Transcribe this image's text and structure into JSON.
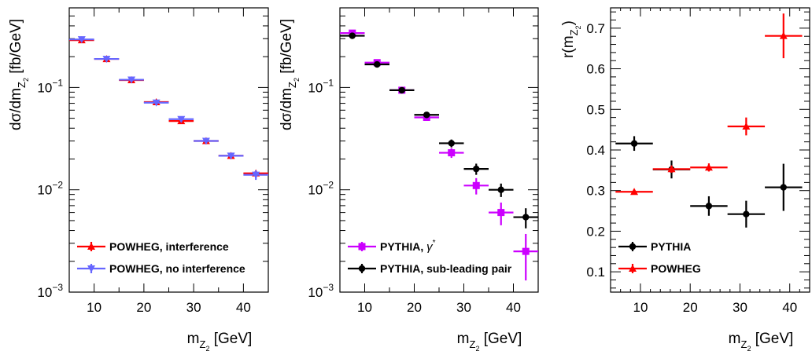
{
  "chart_data": [
    {
      "type": "scatter",
      "panel": "left",
      "ylabel": "dσ/dm_Z2 [fb/GeV]",
      "xlabel": "m_Z2 [GeV]",
      "yscale": "log",
      "xlim": [
        5,
        45
      ],
      "ylim": [
        0.001,
        0.6
      ],
      "xticks": [
        10,
        20,
        30,
        40
      ],
      "yticks": [
        {
          "value": 0.1,
          "label": "10",
          "exp": "−1"
        },
        {
          "value": 0.01,
          "label": "10",
          "exp": "−2"
        },
        {
          "value": 0.001,
          "label": "10",
          "exp": "−3"
        }
      ],
      "legend_position": "bottom-left",
      "series": [
        {
          "name": "POWHEG, interference",
          "color": "#ff0000",
          "marker": "triangle-up",
          "x": [
            7.5,
            12.5,
            17.5,
            22.5,
            27.5,
            32.5,
            37.5,
            42.5
          ],
          "xerr": 2.5,
          "y": [
            0.29,
            0.19,
            0.118,
            0.072,
            0.047,
            0.03,
            0.0215,
            0.0145
          ],
          "yerr": [
            0.008,
            0.005,
            0.003,
            0.002,
            0.0018,
            0.0013,
            0.001,
            0.0008
          ]
        },
        {
          "name": "POWHEG, no interference",
          "color": "#6666ff",
          "marker": "triangle-down",
          "x": [
            7.5,
            12.5,
            17.5,
            22.5,
            27.5,
            32.5,
            37.5,
            42.5
          ],
          "xerr": 2.5,
          "y": [
            0.295,
            0.19,
            0.119,
            0.071,
            0.049,
            0.03,
            0.0215,
            0.014
          ],
          "yerr": [
            0.008,
            0.005,
            0.003,
            0.003,
            0.003,
            0.0015,
            0.001,
            0.0015
          ]
        }
      ]
    },
    {
      "type": "scatter",
      "panel": "middle",
      "ylabel": "dσ/dm_Z2 [fb/GeV]",
      "xlabel": "m_Z2 [GeV]",
      "yscale": "log",
      "xlim": [
        5,
        45
      ],
      "ylim": [
        0.001,
        0.6
      ],
      "xticks": [
        10,
        20,
        30,
        40
      ],
      "yticks": [
        {
          "value": 0.1,
          "label": "10",
          "exp": "−1"
        },
        {
          "value": 0.01,
          "label": "10",
          "exp": "−2"
        },
        {
          "value": 0.001,
          "label": "10",
          "exp": "−3"
        }
      ],
      "legend_position": "bottom-left",
      "series": [
        {
          "name": "PYTHIA, γ*",
          "color": "#cc00ff",
          "marker": "square",
          "x": [
            7.5,
            12.5,
            17.5,
            22.5,
            27.5,
            32.5,
            37.5,
            42.5
          ],
          "xerr": 2.5,
          "y": [
            0.34,
            0.175,
            0.094,
            0.051,
            0.023,
            0.011,
            0.006,
            0.0025
          ],
          "yerr": [
            0.01,
            0.006,
            0.004,
            0.003,
            0.0025,
            0.002,
            0.0015,
            0.0012
          ]
        },
        {
          "name": "PYTHIA, sub-leading pair",
          "color": "#000000",
          "marker": "circle",
          "x": [
            7.5,
            12.5,
            17.5,
            22.5,
            27.5,
            32.5,
            37.5,
            42.5
          ],
          "xerr": 2.5,
          "y": [
            0.32,
            0.168,
            0.094,
            0.054,
            0.0285,
            0.016,
            0.01,
            0.0054
          ],
          "yerr": [
            0.01,
            0.006,
            0.003,
            0.003,
            0.0025,
            0.002,
            0.0015,
            0.0012
          ]
        }
      ]
    },
    {
      "type": "scatter",
      "panel": "right",
      "ylabel": "r(m_Z2)",
      "xlabel": "m_Z2 [GeV]",
      "yscale": "linear",
      "xlim": [
        4,
        44
      ],
      "ylim": [
        0.05,
        0.75
      ],
      "xticks": [
        10,
        20,
        30,
        40
      ],
      "yticks": [
        {
          "value": 0.1,
          "label": "0.1"
        },
        {
          "value": 0.2,
          "label": "0.2"
        },
        {
          "value": 0.3,
          "label": "0.3"
        },
        {
          "value": 0.4,
          "label": "0.4"
        },
        {
          "value": 0.5,
          "label": "0.5"
        },
        {
          "value": 0.6,
          "label": "0.6"
        },
        {
          "value": 0.7,
          "label": "0.7"
        }
      ],
      "legend_position": "bottom-left",
      "series": [
        {
          "name": "PYTHIA",
          "color": "#000000",
          "marker": "circle",
          "x": [
            8.75,
            16.25,
            23.75,
            31.25,
            38.75
          ],
          "xerr": 3.75,
          "y": [
            0.416,
            0.352,
            0.262,
            0.242,
            0.308
          ],
          "yerr": [
            0.018,
            0.022,
            0.024,
            0.033,
            0.058
          ]
        },
        {
          "name": "POWHEG",
          "color": "#ff0000",
          "marker": "triangle-up",
          "x": [
            8.75,
            16.25,
            23.75,
            31.25,
            38.75
          ],
          "xerr": 3.75,
          "y": [
            0.297,
            0.353,
            0.357,
            0.458,
            0.681
          ],
          "yerr": [
            0.005,
            0.009,
            0.01,
            0.022,
            0.055
          ]
        }
      ]
    }
  ]
}
